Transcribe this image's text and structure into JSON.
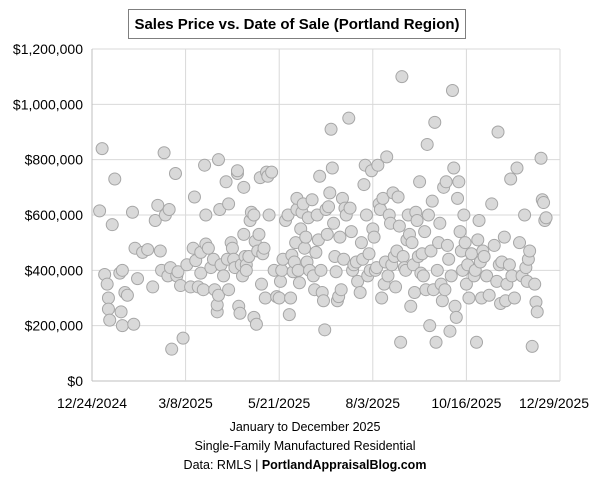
{
  "chart_data": {
    "type": "scatter",
    "title": "Sales Price vs. Date of Sale (Portland Region)",
    "xlabel": "January to December 2025",
    "ylabel": "",
    "subtitle_lines": [
      "Single-Family Manufactured Residential"
    ],
    "source_prefix": "Data: RMLS | ",
    "source_bold": "PortlandAppraisalBlog.com",
    "x_start_date": "2024-12-24",
    "xlim_days": [
      0,
      370
    ],
    "ylim": [
      0,
      1200000
    ],
    "y_ticks": [
      {
        "value": 0,
        "label": "$0"
      },
      {
        "value": 200000,
        "label": "$200,000"
      },
      {
        "value": 400000,
        "label": "$400,000"
      },
      {
        "value": 600000,
        "label": "$600,000"
      },
      {
        "value": 800000,
        "label": "$800,000"
      },
      {
        "value": 1000000,
        "label": "$1,000,000"
      },
      {
        "value": 1200000,
        "label": "$1,200,000"
      }
    ],
    "x_ticks": [
      {
        "value": 0,
        "label": "12/24/2024"
      },
      {
        "value": 74,
        "label": "3/8/2025"
      },
      {
        "value": 148,
        "label": "5/21/2025"
      },
      {
        "value": 222,
        "label": "8/3/2025"
      },
      {
        "value": 296,
        "label": "10/16/2025"
      },
      {
        "value": 370,
        "label": "12/29/2025"
      }
    ],
    "grid": true,
    "marker_fill": "#d9d9d9",
    "marker_stroke": "#a6a6a6",
    "series": [
      {
        "name": "Sales",
        "points": [
          [
            8,
            840000
          ],
          [
            6,
            615000
          ],
          [
            10,
            385000
          ],
          [
            12,
            350000
          ],
          [
            13,
            300000
          ],
          [
            13,
            260000
          ],
          [
            14,
            220000
          ],
          [
            16,
            565000
          ],
          [
            18,
            730000
          ],
          [
            22,
            390000
          ],
          [
            24,
            200000
          ],
          [
            23,
            250000
          ],
          [
            26,
            320000
          ],
          [
            24,
            400000
          ],
          [
            28,
            310000
          ],
          [
            32,
            610000
          ],
          [
            33,
            205000
          ],
          [
            34,
            480000
          ],
          [
            36,
            370000
          ],
          [
            40,
            465000
          ],
          [
            44,
            475000
          ],
          [
            48,
            340000
          ],
          [
            50,
            580000
          ],
          [
            52,
            635000
          ],
          [
            54,
            470000
          ],
          [
            55,
            400000
          ],
          [
            57,
            825000
          ],
          [
            58,
            600000
          ],
          [
            60,
            380000
          ],
          [
            61,
            620000
          ],
          [
            62,
            410000
          ],
          [
            63,
            115000
          ],
          [
            66,
            750000
          ],
          [
            67,
            380000
          ],
          [
            68,
            395000
          ],
          [
            70,
            345000
          ],
          [
            72,
            155000
          ],
          [
            75,
            420000
          ],
          [
            78,
            340000
          ],
          [
            80,
            480000
          ],
          [
            81,
            665000
          ],
          [
            82,
            435000
          ],
          [
            84,
            340000
          ],
          [
            86,
            390000
          ],
          [
            86,
            465000
          ],
          [
            88,
            330000
          ],
          [
            89,
            780000
          ],
          [
            90,
            600000
          ],
          [
            90,
            495000
          ],
          [
            92,
            480000
          ],
          [
            94,
            410000
          ],
          [
            96,
            440000
          ],
          [
            97,
            330000
          ],
          [
            99,
            250000
          ],
          [
            99,
            275000
          ],
          [
            100,
            800000
          ],
          [
            100,
            310000
          ],
          [
            101,
            620000
          ],
          [
            102,
            420000
          ],
          [
            104,
            380000
          ],
          [
            106,
            720000
          ],
          [
            107,
            440000
          ],
          [
            108,
            640000
          ],
          [
            108,
            330000
          ],
          [
            110,
            500000
          ],
          [
            111,
            480000
          ],
          [
            112,
            440000
          ],
          [
            113,
            410000
          ],
          [
            115,
            750000
          ],
          [
            115,
            760000
          ],
          [
            116,
            270000
          ],
          [
            117,
            245000
          ],
          [
            118,
            420000
          ],
          [
            119,
            380000
          ],
          [
            120,
            700000
          ],
          [
            120,
            530000
          ],
          [
            121,
            450000
          ],
          [
            122,
            420000
          ],
          [
            122,
            400000
          ],
          [
            124,
            450000
          ],
          [
            125,
            580000
          ],
          [
            126,
            610000
          ],
          [
            128,
            600000
          ],
          [
            128,
            230000
          ],
          [
            129,
            505000
          ],
          [
            130,
            205000
          ],
          [
            131,
            470000
          ],
          [
            132,
            530000
          ],
          [
            133,
            735000
          ],
          [
            134,
            350000
          ],
          [
            135,
            460000
          ],
          [
            136,
            480000
          ],
          [
            137,
            300000
          ],
          [
            138,
            755000
          ],
          [
            139,
            740000
          ],
          [
            140,
            600000
          ],
          [
            142,
            755000
          ],
          [
            144,
            400000
          ],
          [
            146,
            305000
          ],
          [
            148,
            300000
          ],
          [
            149,
            360000
          ],
          [
            150,
            400000
          ],
          [
            151,
            440000
          ],
          [
            153,
            580000
          ],
          [
            155,
            600000
          ],
          [
            156,
            240000
          ],
          [
            157,
            300000
          ],
          [
            158,
            455000
          ],
          [
            159,
            395000
          ],
          [
            160,
            430000
          ],
          [
            161,
            500000
          ],
          [
            162,
            620000
          ],
          [
            162,
            660000
          ],
          [
            163,
            400000
          ],
          [
            164,
            355000
          ],
          [
            165,
            550000
          ],
          [
            166,
            610000
          ],
          [
            167,
            640000
          ],
          [
            168,
            480000
          ],
          [
            169,
            520000
          ],
          [
            170,
            430000
          ],
          [
            171,
            590000
          ],
          [
            172,
            400000
          ],
          [
            174,
            655000
          ],
          [
            175,
            380000
          ],
          [
            176,
            330000
          ],
          [
            177,
            465000
          ],
          [
            178,
            600000
          ],
          [
            179,
            510000
          ],
          [
            180,
            740000
          ],
          [
            181,
            400000
          ],
          [
            182,
            320000
          ],
          [
            183,
            290000
          ],
          [
            184,
            185000
          ],
          [
            185,
            620000
          ],
          [
            186,
            530000
          ],
          [
            187,
            630000
          ],
          [
            188,
            680000
          ],
          [
            189,
            910000
          ],
          [
            190,
            770000
          ],
          [
            191,
            570000
          ],
          [
            192,
            450000
          ],
          [
            193,
            395000
          ],
          [
            194,
            290000
          ],
          [
            195,
            305000
          ],
          [
            196,
            520000
          ],
          [
            197,
            330000
          ],
          [
            198,
            660000
          ],
          [
            199,
            440000
          ],
          [
            200,
            625000
          ],
          [
            201,
            600000
          ],
          [
            203,
            950000
          ],
          [
            204,
            625000
          ],
          [
            205,
            540000
          ],
          [
            206,
            400000
          ],
          [
            207,
            420000
          ],
          [
            209,
            430000
          ],
          [
            210,
            360000
          ],
          [
            212,
            320000
          ],
          [
            213,
            500000
          ],
          [
            214,
            440000
          ],
          [
            215,
            710000
          ],
          [
            216,
            780000
          ],
          [
            217,
            600000
          ],
          [
            218,
            380000
          ],
          [
            219,
            460000
          ],
          [
            220,
            400000
          ],
          [
            221,
            760000
          ],
          [
            222,
            550000
          ],
          [
            223,
            520000
          ],
          [
            224,
            400000
          ],
          [
            225,
            410000
          ],
          [
            226,
            780000
          ],
          [
            227,
            640000
          ],
          [
            228,
            620000
          ],
          [
            229,
            300000
          ],
          [
            230,
            660000
          ],
          [
            231,
            350000
          ],
          [
            232,
            430000
          ],
          [
            233,
            810000
          ],
          [
            234,
            380000
          ],
          [
            235,
            600000
          ],
          [
            236,
            570000
          ],
          [
            237,
            420000
          ],
          [
            238,
            680000
          ],
          [
            239,
            450000
          ],
          [
            240,
            340000
          ],
          [
            241,
            470000
          ],
          [
            242,
            665000
          ],
          [
            243,
            560000
          ],
          [
            244,
            140000
          ],
          [
            245,
            1100000
          ],
          [
            246,
            450000
          ],
          [
            247,
            410000
          ],
          [
            248,
            400000
          ],
          [
            249,
            510000
          ],
          [
            250,
            600000
          ],
          [
            251,
            530000
          ],
          [
            252,
            270000
          ],
          [
            253,
            500000
          ],
          [
            254,
            420000
          ],
          [
            255,
            320000
          ],
          [
            256,
            610000
          ],
          [
            257,
            580000
          ],
          [
            258,
            450000
          ],
          [
            259,
            720000
          ],
          [
            260,
            390000
          ],
          [
            261,
            460000
          ],
          [
            262,
            380000
          ],
          [
            263,
            540000
          ],
          [
            264,
            330000
          ],
          [
            265,
            855000
          ],
          [
            266,
            600000
          ],
          [
            267,
            200000
          ],
          [
            268,
            470000
          ],
          [
            269,
            650000
          ],
          [
            270,
            330000
          ],
          [
            271,
            935000
          ],
          [
            272,
            140000
          ],
          [
            273,
            400000
          ],
          [
            274,
            500000
          ],
          [
            275,
            570000
          ],
          [
            276,
            350000
          ],
          [
            277,
            290000
          ],
          [
            278,
            700000
          ],
          [
            279,
            330000
          ],
          [
            280,
            720000
          ],
          [
            281,
            490000
          ],
          [
            282,
            440000
          ],
          [
            283,
            180000
          ],
          [
            284,
            380000
          ],
          [
            285,
            1050000
          ],
          [
            286,
            770000
          ],
          [
            287,
            270000
          ],
          [
            288,
            230000
          ],
          [
            289,
            660000
          ],
          [
            290,
            720000
          ],
          [
            291,
            540000
          ],
          [
            292,
            470000
          ],
          [
            293,
            400000
          ],
          [
            294,
            600000
          ],
          [
            295,
            500000
          ],
          [
            296,
            350000
          ],
          [
            297,
            420000
          ],
          [
            298,
            300000
          ],
          [
            300,
            460000
          ],
          [
            302,
            380000
          ],
          [
            303,
            400000
          ],
          [
            304,
            140000
          ],
          [
            305,
            510000
          ],
          [
            306,
            580000
          ],
          [
            307,
            430000
          ],
          [
            308,
            300000
          ],
          [
            309,
            470000
          ],
          [
            310,
            450000
          ],
          [
            312,
            380000
          ],
          [
            314,
            310000
          ],
          [
            316,
            640000
          ],
          [
            318,
            490000
          ],
          [
            320,
            360000
          ],
          [
            321,
            900000
          ],
          [
            322,
            420000
          ],
          [
            323,
            280000
          ],
          [
            324,
            430000
          ],
          [
            326,
            520000
          ],
          [
            327,
            290000
          ],
          [
            328,
            350000
          ],
          [
            330,
            420000
          ],
          [
            331,
            730000
          ],
          [
            332,
            380000
          ],
          [
            334,
            300000
          ],
          [
            336,
            770000
          ],
          [
            338,
            500000
          ],
          [
            340,
            380000
          ],
          [
            342,
            600000
          ],
          [
            343,
            410000
          ],
          [
            344,
            360000
          ],
          [
            345,
            440000
          ],
          [
            346,
            470000
          ],
          [
            348,
            125000
          ],
          [
            350,
            350000
          ],
          [
            351,
            285000
          ],
          [
            352,
            250000
          ],
          [
            355,
            805000
          ],
          [
            356,
            655000
          ],
          [
            357,
            645000
          ],
          [
            358,
            580000
          ],
          [
            359,
            590000
          ]
        ]
      }
    ]
  }
}
